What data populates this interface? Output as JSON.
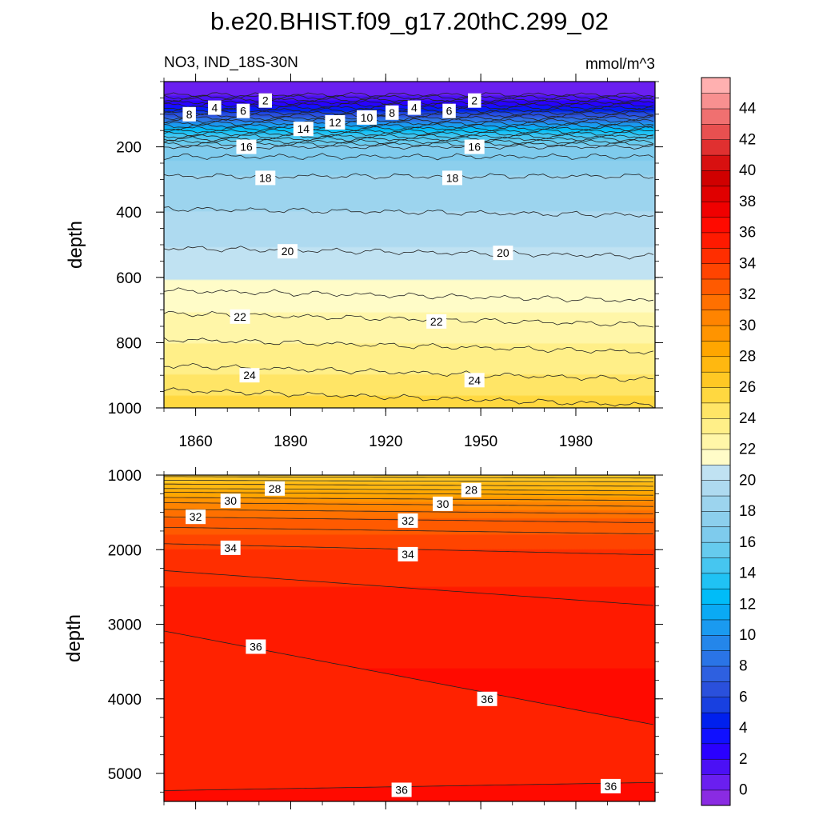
{
  "title": "b.e20.BHIST.f09_g17.20thC.299_02",
  "subtitle_left": "NO3, IND_18S-30N",
  "subtitle_right": "mmol/m^3",
  "chart_data": [
    {
      "type": "contour",
      "panel": "upper",
      "xlabel": "",
      "ylabel": "depth",
      "xlim": [
        1850,
        2005
      ],
      "ylim": [
        1000,
        0
      ],
      "xticks": [
        1860,
        1890,
        1920,
        1950,
        1980
      ],
      "yticks": [
        200,
        400,
        600,
        800,
        1000
      ],
      "levels": [
        0,
        2,
        4,
        6,
        8,
        10,
        12,
        14,
        16,
        18,
        20,
        22,
        24,
        26
      ],
      "contour_depths": [
        {
          "level": 2,
          "depth": 60
        },
        {
          "level": 4,
          "depth": 85
        },
        {
          "level": 6,
          "depth": 100
        },
        {
          "level": 8,
          "depth": 115
        },
        {
          "level": 10,
          "depth": 130
        },
        {
          "level": 12,
          "depth": 145
        },
        {
          "level": 14,
          "depth": 165
        },
        {
          "level": 16,
          "depth": 195
        },
        {
          "level": 18,
          "depth": 290
        },
        {
          "level": 20,
          "depth": 510
        },
        {
          "level": 22,
          "depth": 710
        },
        {
          "level": 24,
          "depth": 900
        }
      ],
      "contour_labels": [
        {
          "text": "2",
          "x": 1882,
          "y": 58
        },
        {
          "text": "2",
          "x": 1948,
          "y": 58
        },
        {
          "text": "4",
          "x": 1866,
          "y": 80
        },
        {
          "text": "4",
          "x": 1929,
          "y": 80
        },
        {
          "text": "6",
          "x": 1875,
          "y": 90
        },
        {
          "text": "6",
          "x": 1940,
          "y": 90
        },
        {
          "text": "8",
          "x": 1858,
          "y": 100
        },
        {
          "text": "8",
          "x": 1922,
          "y": 95
        },
        {
          "text": "10",
          "x": 1914,
          "y": 110
        },
        {
          "text": "12",
          "x": 1904,
          "y": 125
        },
        {
          "text": "14",
          "x": 1894,
          "y": 145
        },
        {
          "text": "16",
          "x": 1876,
          "y": 200
        },
        {
          "text": "16",
          "x": 1948,
          "y": 200
        },
        {
          "text": "18",
          "x": 1882,
          "y": 295
        },
        {
          "text": "18",
          "x": 1941,
          "y": 295
        },
        {
          "text": "20",
          "x": 1889,
          "y": 520
        },
        {
          "text": "20",
          "x": 1957,
          "y": 525
        },
        {
          "text": "22",
          "x": 1874,
          "y": 720
        },
        {
          "text": "22",
          "x": 1936,
          "y": 735
        },
        {
          "text": "24",
          "x": 1877,
          "y": 900
        },
        {
          "text": "24",
          "x": 1948,
          "y": 915
        }
      ]
    },
    {
      "type": "contour",
      "panel": "lower",
      "xlabel": "",
      "ylabel": "depth",
      "xlim": [
        1850,
        2005
      ],
      "ylim": [
        5375,
        1000
      ],
      "xticks": [
        1860,
        1890,
        1920,
        1950,
        1980
      ],
      "yticks": [
        1000,
        2000,
        3000,
        4000,
        5000
      ],
      "levels": [
        26,
        28,
        30,
        32,
        34,
        36,
        38
      ],
      "contour_labels": [
        {
          "text": "28",
          "x": 1885,
          "y": 1180
        },
        {
          "text": "28",
          "x": 1947,
          "y": 1200
        },
        {
          "text": "30",
          "x": 1871,
          "y": 1345
        },
        {
          "text": "30",
          "x": 1938,
          "y": 1385
        },
        {
          "text": "32",
          "x": 1860,
          "y": 1560
        },
        {
          "text": "32",
          "x": 1927,
          "y": 1610
        },
        {
          "text": "34",
          "x": 1871,
          "y": 1975
        },
        {
          "text": "34",
          "x": 1927,
          "y": 2060
        },
        {
          "text": "36",
          "x": 1879,
          "y": 3300
        },
        {
          "text": "36",
          "x": 1952,
          "y": 4000
        },
        {
          "text": "36",
          "x": 1925,
          "y": 5220
        },
        {
          "text": "36",
          "x": 1991,
          "y": 5170
        }
      ]
    }
  ],
  "colorbar": {
    "ticks": [
      "0",
      "2",
      "4",
      "6",
      "8",
      "10",
      "12",
      "14",
      "16",
      "18",
      "20",
      "22",
      "24",
      "26",
      "28",
      "30",
      "32",
      "34",
      "36",
      "38",
      "40",
      "42",
      "44"
    ],
    "levels": [
      -1,
      0,
      1,
      2,
      3,
      4,
      5,
      6,
      7,
      8,
      9,
      10,
      11,
      12,
      13,
      14,
      15,
      16,
      17,
      18,
      19,
      20,
      21,
      22,
      23,
      24,
      25,
      26,
      27,
      28,
      29,
      30,
      31,
      32,
      33,
      34,
      35,
      36,
      37,
      38,
      39,
      40,
      41,
      42,
      43,
      44,
      45,
      46
    ],
    "colors": [
      "#8a2be2",
      "#6a1ff0",
      "#4b10f5",
      "#2a00ff",
      "#1010ff",
      "#0020ee",
      "#1840e0",
      "#2a50dc",
      "#2e60e0",
      "#2a74e6",
      "#2486ea",
      "#1a9af0",
      "#0aaaf4",
      "#00bcf8",
      "#20c2f4",
      "#46c6f0",
      "#66cbee",
      "#7ecbed",
      "#8ccfed",
      "#9cd4ee",
      "#aedaf0",
      "#c0e2f2",
      "#fffcc8",
      "#fff6a8",
      "#ffef88",
      "#ffe566",
      "#ffd840",
      "#ffc824",
      "#ffb810",
      "#ffa600",
      "#ff9400",
      "#ff8400",
      "#ff7000",
      "#ff5a00",
      "#ff4400",
      "#ff2e00",
      "#ff1a00",
      "#ff0a00",
      "#f00000",
      "#e00000",
      "#d00000",
      "#d81010",
      "#e03030",
      "#e85050",
      "#f07070",
      "#f89090",
      "#ffb0b0"
    ]
  }
}
